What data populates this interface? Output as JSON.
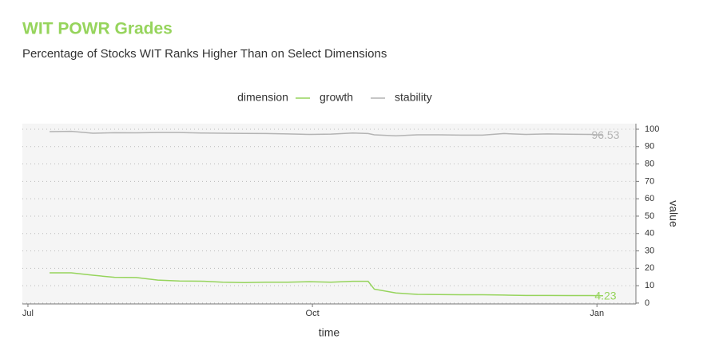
{
  "chart_data": {
    "type": "line",
    "title": "WIT POWR Grades",
    "subtitle": "Percentage of Stocks WIT Ranks Higher Than on Select Dimensions",
    "legend_title": "dimension",
    "x_label": "time",
    "y_label": "value",
    "x": [
      7,
      14,
      21,
      28,
      35,
      42,
      49,
      56,
      63,
      70,
      77,
      84,
      91,
      98,
      105,
      110,
      112,
      119,
      126,
      133,
      140,
      147,
      154,
      161,
      168,
      175,
      182,
      186
    ],
    "series": [
      {
        "name": "growth",
        "color": "#96d45c",
        "values": [
          17.4,
          17.4,
          16,
          14.8,
          14.7,
          13.2,
          12.7,
          12.6,
          12,
          11.8,
          12,
          12,
          12.3,
          12,
          12.5,
          12.5,
          8,
          5.8,
          5,
          4.9,
          4.8,
          4.8,
          4.6,
          4.4,
          4.4,
          4.3,
          4.3,
          4.23
        ]
      },
      {
        "name": "stability",
        "color": "#b4b4b4",
        "values": [
          98.6,
          98.8,
          97.7,
          98,
          97.9,
          98.1,
          98.1,
          97.8,
          97.7,
          97.6,
          97.5,
          97.3,
          97,
          97.2,
          97.8,
          97.5,
          96.8,
          96.2,
          96.8,
          96.8,
          96.6,
          96.6,
          97.5,
          97,
          97.3,
          97.1,
          97,
          96.53
        ]
      }
    ],
    "xlim": [
      -1.8,
      196.6
    ],
    "xticks": [
      {
        "value": 0,
        "label": "Jul"
      },
      {
        "value": 92,
        "label": "Oct"
      },
      {
        "value": 184,
        "label": "Jan"
      }
    ],
    "ylim": [
      -0.5,
      103.2
    ],
    "yticks": [
      0,
      10,
      20,
      30,
      40,
      50,
      60,
      70,
      80,
      90,
      100
    ],
    "grid": true
  }
}
